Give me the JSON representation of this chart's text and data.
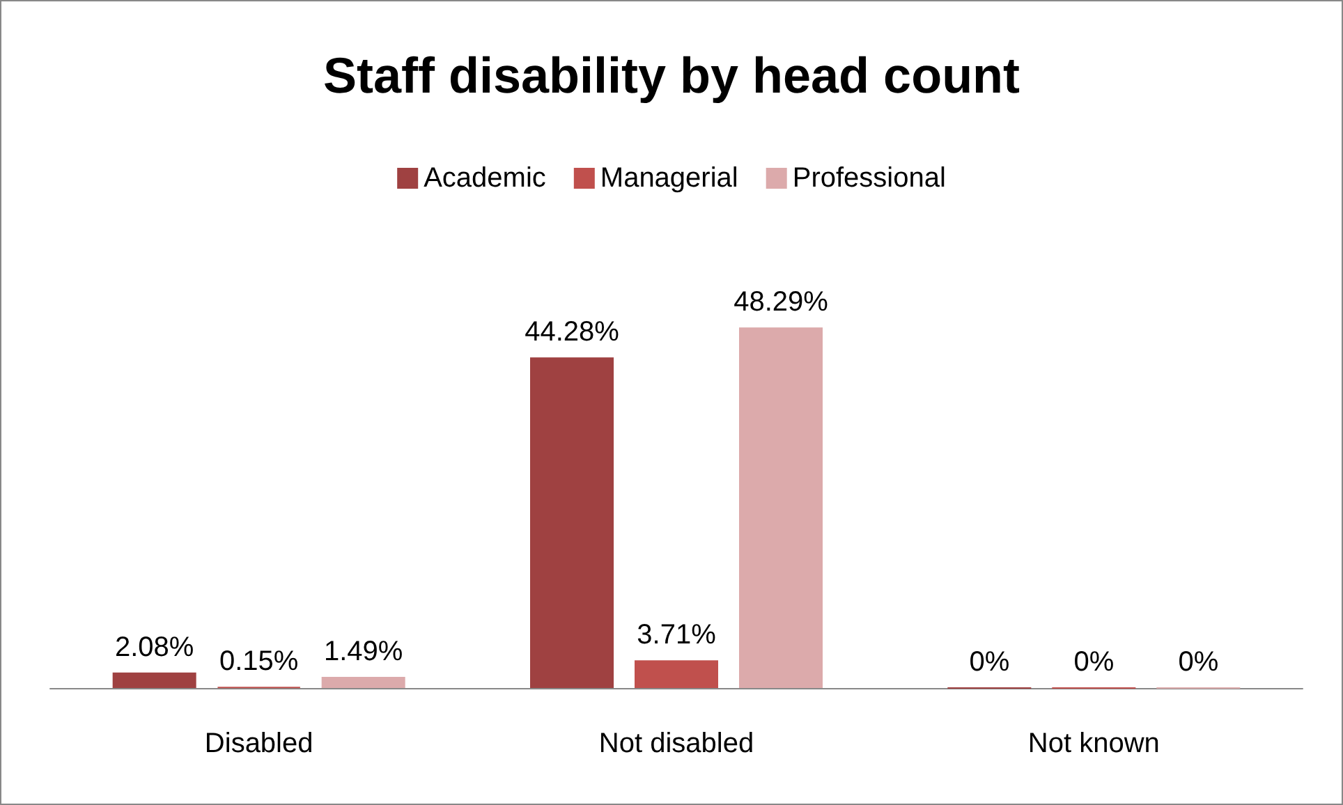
{
  "chart_data": {
    "type": "bar",
    "title": "Staff disability by head count",
    "categories": [
      "Disabled",
      "Not disabled",
      "Not known"
    ],
    "series": [
      {
        "name": "Academic",
        "color": "#9f4141",
        "values": [
          2.08,
          44.28,
          0
        ],
        "value_labels": [
          "2.08%",
          "44.28%",
          "0%"
        ]
      },
      {
        "name": "Managerial",
        "color": "#c0504d",
        "values": [
          0.15,
          3.71,
          0
        ],
        "value_labels": [
          "0.15%",
          "3.71%",
          "0%"
        ]
      },
      {
        "name": "Professional",
        "color": "#dcaaab",
        "values": [
          1.49,
          48.29,
          0
        ],
        "value_labels": [
          "1.49%",
          "48.29%",
          "0%"
        ]
      }
    ],
    "legend": "top",
    "grid": false
  }
}
